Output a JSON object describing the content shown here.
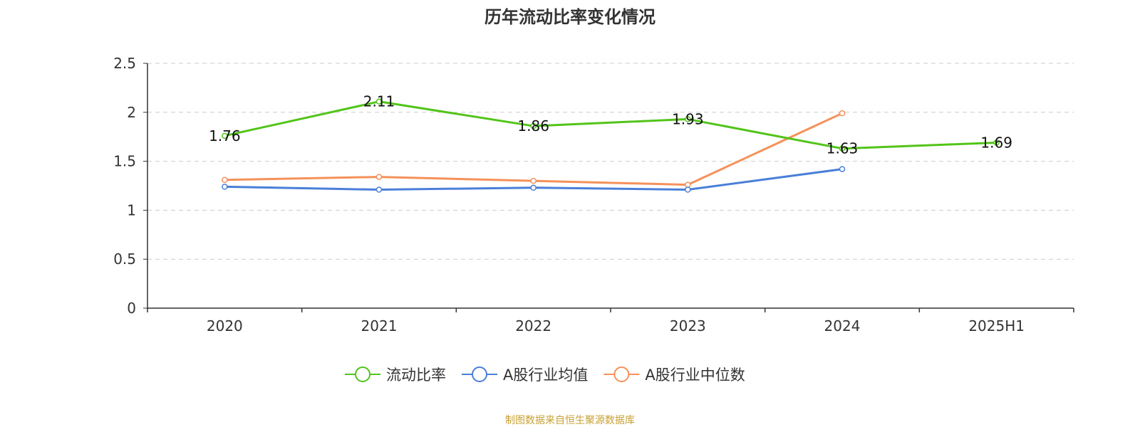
{
  "chart_data": {
    "type": "line",
    "title": "历年流动比率变化情况",
    "categories": [
      "2020",
      "2021",
      "2022",
      "2023",
      "2024",
      "2025H1"
    ],
    "ylim": [
      0,
      2.5
    ],
    "yticks": [
      "0",
      "0.5",
      "1",
      "1.5",
      "2",
      "2.5"
    ],
    "ytick_values": [
      0,
      0.5,
      1,
      1.5,
      2,
      2.5
    ],
    "grid": true,
    "legend_position": "bottom-center",
    "series": [
      {
        "name": "流动比率",
        "color": "#52c41a",
        "show_labels": true,
        "labels": [
          "1.76",
          "2.11",
          "1.86",
          "1.93",
          "1.63",
          "1.69"
        ],
        "values": [
          1.76,
          2.11,
          1.86,
          1.93,
          1.63,
          1.69
        ]
      },
      {
        "name": "A股行业均值",
        "color": "#4a7fd8",
        "show_labels": false,
        "values": [
          1.24,
          1.21,
          1.23,
          1.21,
          1.42,
          null
        ]
      },
      {
        "name": "A股行业中位数",
        "color": "#f5915a",
        "show_labels": false,
        "values": [
          1.31,
          1.34,
          1.3,
          1.26,
          1.99,
          null
        ]
      }
    ]
  },
  "footer": {
    "source": "制图数据来自恒生聚源数据库"
  }
}
